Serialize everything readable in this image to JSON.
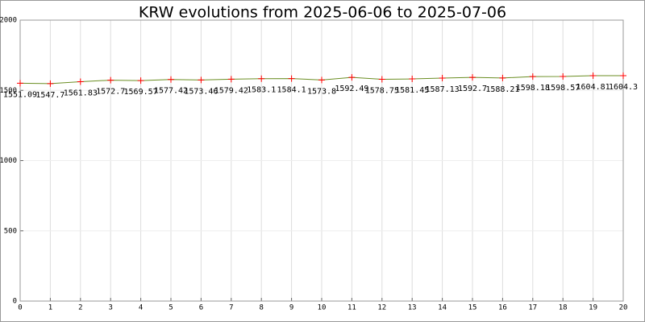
{
  "chart_data": {
    "type": "line",
    "title": "KRW evolutions from 2025-06-06 to 2025-07-06",
    "x": [
      0,
      1,
      2,
      3,
      4,
      5,
      6,
      7,
      8,
      9,
      10,
      11,
      12,
      13,
      14,
      15,
      16,
      17,
      18,
      19,
      20
    ],
    "series": [
      {
        "name": "KRW",
        "color": "#6b8e23",
        "marker_color": "#ff0000",
        "values": [
          1551.09,
          1547.7,
          1561.83,
          1572.7,
          1569.57,
          1577.42,
          1573.46,
          1579.42,
          1583.1,
          1584.1,
          1573.8,
          1592.49,
          1578.75,
          1581.45,
          1587.13,
          1592.7,
          1588.21,
          1598.18,
          1598.57,
          1604.81,
          1604.3
        ]
      }
    ],
    "xlim": [
      0,
      20
    ],
    "xticks": [
      0,
      1,
      2,
      3,
      4,
      5,
      6,
      7,
      8,
      9,
      10,
      11,
      12,
      13,
      14,
      15,
      16,
      17,
      18,
      19,
      20
    ],
    "ylim": [
      0,
      2000
    ],
    "yticks": [
      0,
      500,
      1000,
      1500,
      2000
    ],
    "grid": true
  }
}
